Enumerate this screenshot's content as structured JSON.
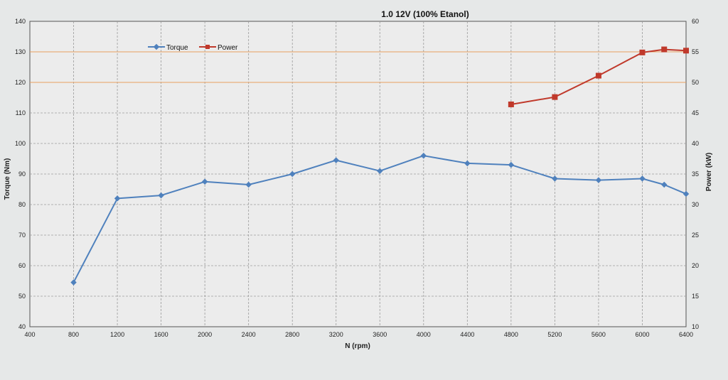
{
  "chart_data": {
    "type": "line",
    "title": "1.0 12V (100% Etanol)",
    "xlabel": "N (rpm)",
    "ylabel_left": "Torque (Nm)",
    "ylabel_right": "Power (kW)",
    "xlim": [
      400,
      6400
    ],
    "ylim_left": [
      40,
      140
    ],
    "ylim_right": [
      10,
      60
    ],
    "x_ticks": [
      "400",
      "800",
      "1200",
      "1600",
      "2000",
      "2400",
      "2800",
      "3200",
      "3600",
      "4000",
      "4400",
      "4800",
      "5200",
      "5600",
      "6000",
      "6400"
    ],
    "y_left_ticks": [
      "40",
      "50",
      "60",
      "70",
      "80",
      "90",
      "100",
      "110",
      "120",
      "130",
      "140"
    ],
    "y_right_ticks": [
      "10",
      "15",
      "20",
      "25",
      "30",
      "35",
      "40",
      "45",
      "50",
      "55",
      "60"
    ],
    "grid": true,
    "legend_position": "top-left",
    "series": [
      {
        "name": "Torque",
        "axis": "left",
        "color": "#4f81bd",
        "marker": "diamond",
        "x": [
          800,
          1200,
          1600,
          2000,
          2400,
          2800,
          3200,
          3600,
          4000,
          4400,
          4800,
          5200,
          5600,
          6000,
          6200,
          6400
        ],
        "y": [
          54.5,
          82,
          83,
          87.5,
          86.5,
          90,
          94.5,
          91,
          96,
          93.5,
          93,
          88.5,
          88,
          88.5,
          86.5,
          83.5
        ]
      },
      {
        "name": "Power",
        "axis": "right",
        "color": "#c0392b",
        "marker": "square",
        "x": [
          4800,
          5200,
          5600,
          6000,
          6200,
          6400
        ],
        "y": [
          46.4,
          47.6,
          51.1,
          54.9,
          55.4,
          55.2
        ]
      }
    ]
  }
}
